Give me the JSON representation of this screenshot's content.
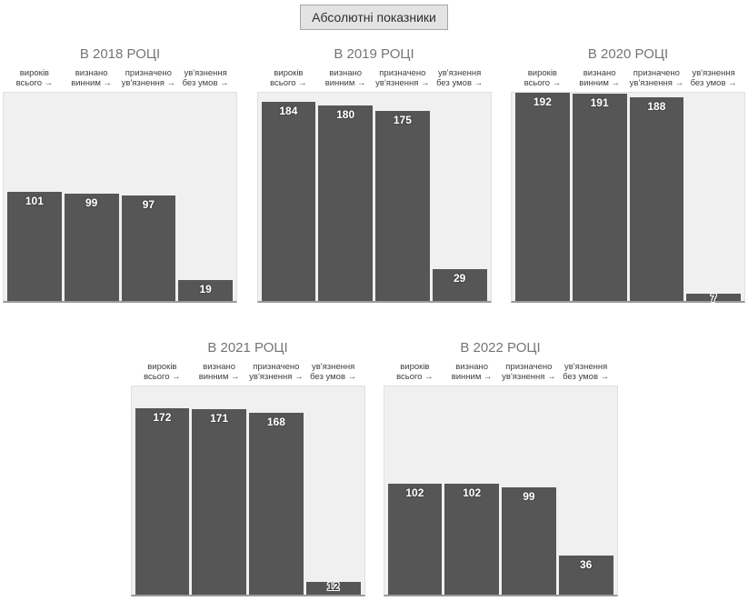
{
  "header": {
    "title_box": "Абсолютні показники"
  },
  "column_headers": [
    {
      "line1": "вироків",
      "line2": "всього →"
    },
    {
      "line1": "визнано",
      "line2": "винним →"
    },
    {
      "line1": "призначено",
      "line2": "ув'язнення →"
    },
    {
      "line1": "ув'язнення",
      "line2": "без умов →"
    }
  ],
  "chart_data": [
    {
      "type": "bar",
      "title": "В 2018 РОЦІ",
      "categories": [
        "вироків всього",
        "визнано винним",
        "призначено ув'язнення",
        "ув'язнення без умов"
      ],
      "values": [
        101,
        99,
        97,
        19
      ],
      "ylim": [
        0,
        192
      ],
      "grid": false,
      "legend": "none",
      "annotations": "values shown on bars"
    },
    {
      "type": "bar",
      "title": "В 2019 РОЦІ",
      "categories": [
        "вироків всього",
        "визнано винним",
        "призначено ув'язнення",
        "ув'язнення без умов"
      ],
      "values": [
        184,
        180,
        175,
        29
      ],
      "ylim": [
        0,
        192
      ],
      "grid": false,
      "legend": "none",
      "annotations": "values shown on bars"
    },
    {
      "type": "bar",
      "title": "В 2020 РОЦІ",
      "categories": [
        "вироків всього",
        "визнано винним",
        "призначено ув'язнення",
        "ув'язнення без умов"
      ],
      "values": [
        192,
        191,
        188,
        7
      ],
      "ylim": [
        0,
        192
      ],
      "grid": false,
      "legend": "none",
      "annotations": "values shown on bars"
    },
    {
      "type": "bar",
      "title": "В 2021 РОЦІ",
      "categories": [
        "вироків всього",
        "визнано винним",
        "призначено ув'язнення",
        "ув'язнення без умов"
      ],
      "values": [
        172,
        171,
        168,
        12
      ],
      "ylim": [
        0,
        192
      ],
      "grid": false,
      "legend": "none",
      "annotations": "values shown on bars"
    },
    {
      "type": "bar",
      "title": "В 2022 РОЦІ",
      "categories": [
        "вироків всього",
        "визнано винним",
        "призначено ув'язнення",
        "ув'язнення без умов"
      ],
      "values": [
        102,
        102,
        99,
        36
      ],
      "ylim": [
        0,
        192
      ],
      "grid": false,
      "legend": "none",
      "annotations": "values shown on bars"
    }
  ],
  "layout_hints": {
    "rows": [
      3,
      2
    ],
    "shared_scale_max": 192
  },
  "colors": {
    "bar": "#565656",
    "plot_background": "#f0f0f0",
    "plot_border": "#e0e0e0",
    "baseline": "#999999",
    "chart_title": "#757575",
    "header_text": "#404040",
    "annotation_inside": "#ffffff",
    "annotation_outside": "#3b3b3b",
    "title_box_bg": "#e3e3e3",
    "title_box_border": "#a6a6a6"
  }
}
